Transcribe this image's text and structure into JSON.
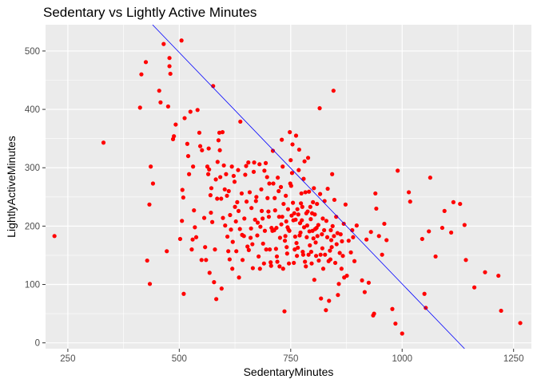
{
  "chart_data": {
    "type": "scatter",
    "title": "Sedentary vs Lightly Active Minutes",
    "xlabel": "SedentaryMinutes",
    "ylabel": "LightlyActiveMinutes",
    "xlim": [
      200,
      1290
    ],
    "ylim": [
      -10,
      545
    ],
    "x_ticks": [
      250,
      500,
      750,
      1000,
      1250
    ],
    "y_ticks": [
      0,
      100,
      200,
      300,
      400,
      500
    ],
    "grid": true,
    "colors": {
      "panel": "#ebebeb",
      "grid_major": "#ffffff",
      "points": "#ff0000",
      "trend_line": "#0000ff"
    },
    "trend_line": {
      "x": [
        440,
        1140
      ],
      "y": [
        545,
        -10
      ]
    },
    "points": [
      [
        220,
        183
      ],
      [
        330,
        343
      ],
      [
        412,
        403
      ],
      [
        415,
        460
      ],
      [
        425,
        481
      ],
      [
        428,
        141
      ],
      [
        433,
        237
      ],
      [
        434,
        101
      ],
      [
        436,
        302
      ],
      [
        441,
        273
      ],
      [
        455,
        432
      ],
      [
        458,
        412
      ],
      [
        465,
        512
      ],
      [
        472,
        157
      ],
      [
        475,
        405
      ],
      [
        478,
        488
      ],
      [
        478,
        474
      ],
      [
        480,
        461
      ],
      [
        486,
        349
      ],
      [
        488,
        354
      ],
      [
        492,
        374
      ],
      [
        502,
        178
      ],
      [
        505,
        518
      ],
      [
        506,
        209
      ],
      [
        507,
        262
      ],
      [
        509,
        249
      ],
      [
        510,
        84
      ],
      [
        512,
        385
      ],
      [
        518,
        341
      ],
      [
        520,
        320
      ],
      [
        522,
        289
      ],
      [
        525,
        396
      ],
      [
        528,
        160
      ],
      [
        530,
        177
      ],
      [
        531,
        302
      ],
      [
        533,
        227
      ],
      [
        535,
        198
      ],
      [
        538,
        181
      ],
      [
        541,
        399
      ],
      [
        545,
        360
      ],
      [
        547,
        337
      ],
      [
        550,
        142
      ],
      [
        551,
        330
      ],
      [
        556,
        214
      ],
      [
        558,
        164
      ],
      [
        560,
        142
      ],
      [
        563,
        302
      ],
      [
        565,
        289
      ],
      [
        566,
        333
      ],
      [
        567,
        297
      ],
      [
        568,
        120
      ],
      [
        570,
        253
      ],
      [
        571,
        223
      ],
      [
        572,
        265
      ],
      [
        574,
        207
      ],
      [
        576,
        440
      ],
      [
        578,
        104
      ],
      [
        580,
        160
      ],
      [
        582,
        280
      ],
      [
        583,
        75
      ],
      [
        585,
        247
      ],
      [
        586,
        310
      ],
      [
        588,
        347
      ],
      [
        590,
        360
      ],
      [
        591,
        330
      ],
      [
        592,
        284
      ],
      [
        594,
        247
      ],
      [
        595,
        93
      ],
      [
        597,
        361
      ],
      [
        598,
        214
      ],
      [
        600,
        304
      ],
      [
        602,
        263
      ],
      [
        603,
        201
      ],
      [
        605,
        289
      ],
      [
        607,
        252
      ],
      [
        608,
        182
      ],
      [
        610,
        157
      ],
      [
        611,
        260
      ],
      [
        613,
        143
      ],
      [
        614,
        219
      ],
      [
        616,
        194
      ],
      [
        618,
        302
      ],
      [
        619,
        127
      ],
      [
        620,
        173
      ],
      [
        622,
        286
      ],
      [
        624,
        276
      ],
      [
        625,
        233
      ],
      [
        627,
        208
      ],
      [
        628,
        157
      ],
      [
        630,
        241
      ],
      [
        632,
        296
      ],
      [
        633,
        226
      ],
      [
        634,
        112
      ],
      [
        636,
        195
      ],
      [
        637,
        379
      ],
      [
        640,
        256
      ],
      [
        641,
        185
      ],
      [
        642,
        142
      ],
      [
        645,
        183
      ],
      [
        646,
        213
      ],
      [
        648,
        288
      ],
      [
        650,
        303
      ],
      [
        651,
        242
      ],
      [
        653,
        165
      ],
      [
        655,
        309
      ],
      [
        656,
        159
      ],
      [
        658,
        258
      ],
      [
        660,
        180
      ],
      [
        661,
        196
      ],
      [
        662,
        231
      ],
      [
        664,
        169
      ],
      [
        665,
        128
      ],
      [
        667,
        293
      ],
      [
        668,
        309
      ],
      [
        670,
        211
      ],
      [
        672,
        243
      ],
      [
        673,
        250
      ],
      [
        675,
        184
      ],
      [
        676,
        206
      ],
      [
        678,
        148
      ],
      [
        680,
        306
      ],
      [
        681,
        127
      ],
      [
        682,
        199
      ],
      [
        684,
        263
      ],
      [
        685,
        226
      ],
      [
        687,
        213
      ],
      [
        688,
        170
      ],
      [
        690,
        136
      ],
      [
        691,
        295
      ],
      [
        692,
        192
      ],
      [
        694,
        308
      ],
      [
        695,
        160
      ],
      [
        697,
        284
      ],
      [
        698,
        248
      ],
      [
        700,
        225
      ],
      [
        701,
        216
      ],
      [
        702,
        273
      ],
      [
        703,
        160
      ],
      [
        705,
        138
      ],
      [
        706,
        132
      ],
      [
        707,
        197
      ],
      [
        709,
        192
      ],
      [
        710,
        329
      ],
      [
        711,
        273
      ],
      [
        713,
        193
      ],
      [
        714,
        248
      ],
      [
        715,
        227
      ],
      [
        717,
        161
      ],
      [
        718,
        197
      ],
      [
        719,
        148
      ],
      [
        720,
        139
      ],
      [
        721,
        283
      ],
      [
        723,
        260
      ],
      [
        724,
        216
      ],
      [
        725,
        131
      ],
      [
        726,
        180
      ],
      [
        728,
        267
      ],
      [
        729,
        203
      ],
      [
        730,
        348
      ],
      [
        731,
        216
      ],
      [
        732,
        302
      ],
      [
        733,
        127
      ],
      [
        734,
        238
      ],
      [
        736,
        54
      ],
      [
        737,
        175
      ],
      [
        738,
        183
      ],
      [
        739,
        252
      ],
      [
        740,
        208
      ],
      [
        741,
        164
      ],
      [
        742,
        153
      ],
      [
        743,
        198
      ],
      [
        744,
        229
      ],
      [
        745,
        194
      ],
      [
        746,
        136
      ],
      [
        747,
        192
      ],
      [
        748,
        361
      ],
      [
        749,
        273
      ],
      [
        750,
        313
      ],
      [
        751,
        269
      ],
      [
        752,
        218
      ],
      [
        753,
        291
      ],
      [
        754,
        340
      ],
      [
        755,
        240
      ],
      [
        756,
        210
      ],
      [
        757,
        137
      ],
      [
        758,
        222
      ],
      [
        759,
        160
      ],
      [
        760,
        182
      ],
      [
        761,
        211
      ],
      [
        762,
        355
      ],
      [
        763,
        171
      ],
      [
        764,
        149
      ],
      [
        765,
        229
      ],
      [
        766,
        163
      ],
      [
        767,
        220
      ],
      [
        768,
        296
      ],
      [
        769,
        331
      ],
      [
        770,
        184
      ],
      [
        771,
        205
      ],
      [
        772,
        189
      ],
      [
        773,
        239
      ],
      [
        774,
        256
      ],
      [
        775,
        210
      ],
      [
        776,
        233
      ],
      [
        777,
        156
      ],
      [
        778,
        151
      ],
      [
        779,
        281
      ],
      [
        780,
        198
      ],
      [
        781,
        311
      ],
      [
        782,
        139
      ],
      [
        783,
        258
      ],
      [
        784,
        131
      ],
      [
        785,
        222
      ],
      [
        786,
        181
      ],
      [
        787,
        201
      ],
      [
        788,
        225
      ],
      [
        789,
        317
      ],
      [
        790,
        151
      ],
      [
        791,
        259
      ],
      [
        792,
        191
      ],
      [
        793,
        167
      ],
      [
        794,
        233
      ],
      [
        795,
        212
      ],
      [
        796,
        156
      ],
      [
        797,
        136
      ],
      [
        798,
        222
      ],
      [
        799,
        192
      ],
      [
        800,
        241
      ],
      [
        801,
        179
      ],
      [
        802,
        265
      ],
      [
        803,
        108
      ],
      [
        804,
        220
      ],
      [
        805,
        195
      ],
      [
        806,
        172
      ],
      [
        807,
        149
      ],
      [
        808,
        197
      ],
      [
        809,
        238
      ],
      [
        810,
        183
      ],
      [
        812,
        202
      ],
      [
        813,
        141
      ],
      [
        815,
        402
      ],
      [
        816,
        255
      ],
      [
        817,
        151
      ],
      [
        818,
        76
      ],
      [
        820,
        186
      ],
      [
        821,
        162
      ],
      [
        822,
        213
      ],
      [
        823,
        127
      ],
      [
        825,
        193
      ],
      [
        826,
        243
      ],
      [
        827,
        151
      ],
      [
        829,
        56
      ],
      [
        830,
        209
      ],
      [
        832,
        181
      ],
      [
        833,
        264
      ],
      [
        835,
        140
      ],
      [
        836,
        72
      ],
      [
        838,
        158
      ],
      [
        839,
        143
      ],
      [
        840,
        193
      ],
      [
        841,
        176
      ],
      [
        842,
        164
      ],
      [
        843,
        289
      ],
      [
        844,
        200
      ],
      [
        846,
        432
      ],
      [
        847,
        183
      ],
      [
        848,
        245
      ],
      [
        850,
        137
      ],
      [
        852,
        216
      ],
      [
        853,
        169
      ],
      [
        855,
        188
      ],
      [
        856,
        82
      ],
      [
        858,
        101
      ],
      [
        860,
        154
      ],
      [
        862,
        186
      ],
      [
        864,
        127
      ],
      [
        865,
        174
      ],
      [
        867,
        149
      ],
      [
        869,
        204
      ],
      [
        870,
        112
      ],
      [
        873,
        237
      ],
      [
        876,
        115
      ],
      [
        880,
        175
      ],
      [
        885,
        155
      ],
      [
        888,
        193
      ],
      [
        890,
        181
      ],
      [
        893,
        140
      ],
      [
        898,
        201
      ],
      [
        910,
        107
      ],
      [
        916,
        87
      ],
      [
        920,
        177
      ],
      [
        925,
        103
      ],
      [
        930,
        190
      ],
      [
        935,
        47
      ],
      [
        937,
        50
      ],
      [
        940,
        256
      ],
      [
        942,
        230
      ],
      [
        948,
        183
      ],
      [
        955,
        151
      ],
      [
        960,
        204
      ],
      [
        965,
        176
      ],
      [
        978,
        58
      ],
      [
        985,
        33
      ],
      [
        990,
        295
      ],
      [
        1000,
        16
      ],
      [
        1015,
        258
      ],
      [
        1018,
        242
      ],
      [
        1045,
        178
      ],
      [
        1050,
        84
      ],
      [
        1053,
        60
      ],
      [
        1060,
        191
      ],
      [
        1063,
        283
      ],
      [
        1075,
        148
      ],
      [
        1090,
        197
      ],
      [
        1095,
        226
      ],
      [
        1110,
        189
      ],
      [
        1115,
        241
      ],
      [
        1130,
        238
      ],
      [
        1140,
        202
      ],
      [
        1143,
        142
      ],
      [
        1162,
        95
      ],
      [
        1186,
        121
      ],
      [
        1216,
        115
      ],
      [
        1222,
        55
      ],
      [
        1265,
        34
      ]
    ]
  }
}
